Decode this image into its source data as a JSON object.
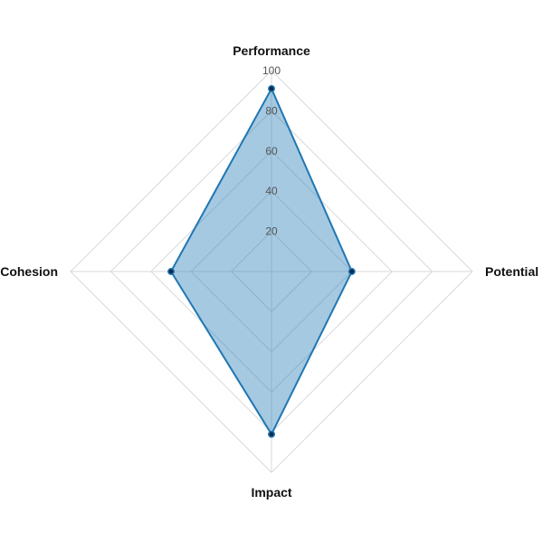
{
  "chart_data": {
    "type": "radar",
    "axes": [
      "Performance",
      "Potential",
      "Impact",
      "Cohesion"
    ],
    "range": [
      0,
      100
    ],
    "ticks": [
      20,
      40,
      60,
      80,
      100
    ],
    "grid": true,
    "legend": "none",
    "series": [
      {
        "values": [
          91,
          40,
          81,
          50
        ],
        "color": "#1f77b4"
      }
    ]
  }
}
